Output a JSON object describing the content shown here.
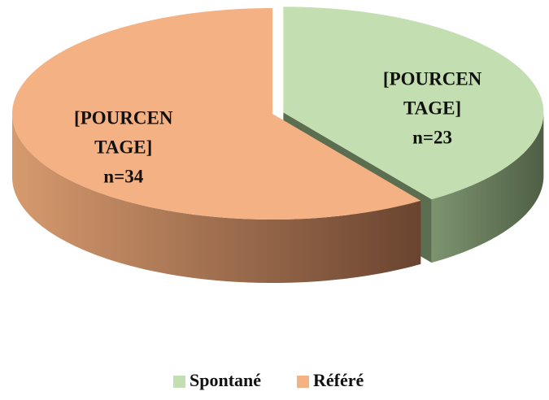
{
  "chart_data": {
    "type": "pie",
    "categories": [
      "Spontané",
      "Référé"
    ],
    "values": [
      23,
      34
    ],
    "value_labels": [
      "n=23",
      "n=34"
    ],
    "label_text": [
      "[POURCEN",
      "TAGE]"
    ],
    "colors": [
      "#c3deb0",
      "#f4b183"
    ],
    "legend": "bottom"
  }
}
